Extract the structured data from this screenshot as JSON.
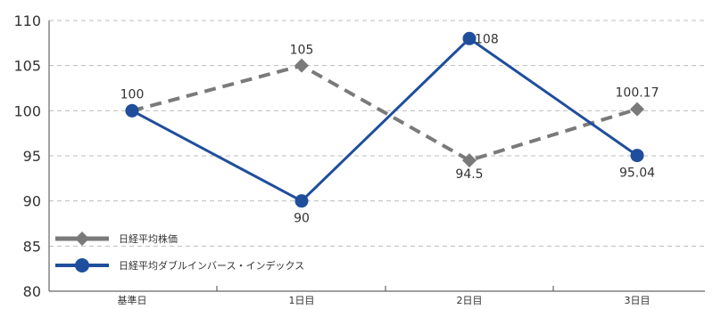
{
  "chart_data": {
    "type": "line",
    "categories": [
      "基準日",
      "1日目",
      "2日目",
      "3日目"
    ],
    "series": [
      {
        "name": "日経平均株価",
        "values": [
          100,
          105,
          94.5,
          100.17
        ],
        "labels": [
          "100",
          "105",
          "94.5",
          "100.17"
        ],
        "color": "#7a7a7a",
        "style": "dashed",
        "marker": "diamond"
      },
      {
        "name": "日経平均ダブルインバース・インデックス",
        "values": [
          100,
          90,
          108,
          95.04
        ],
        "labels": [
          "100",
          "90",
          "108",
          "95.04"
        ],
        "color": "#1f4e9c",
        "style": "solid",
        "marker": "circle"
      }
    ],
    "yticks": [
      80,
      85,
      90,
      95,
      100,
      105,
      110
    ],
    "ylim": [
      80,
      110
    ],
    "grid": true,
    "legend_position": "bottom-left"
  }
}
